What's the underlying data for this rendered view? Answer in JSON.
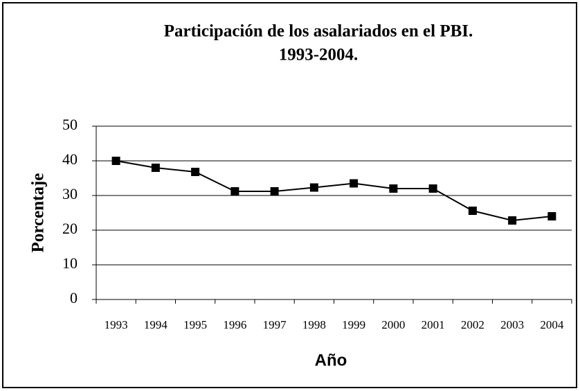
{
  "chart_data": {
    "type": "line",
    "title": [
      "Participación de los asalariados en el PBI.",
      "1993-2004."
    ],
    "x_label": "Año",
    "y_label": "Porcentaje",
    "categories": [
      "1993",
      "1994",
      "1995",
      "1996",
      "1997",
      "1998",
      "1999",
      "2000",
      "2001",
      "2002",
      "2003",
      "2004"
    ],
    "values": [
      40,
      38,
      36.8,
      31.2,
      31.2,
      32.3,
      33.5,
      32,
      32,
      25.6,
      22.8,
      24
    ],
    "color": "#000000",
    "ylim": [
      0,
      50
    ],
    "yticks": [
      0,
      10,
      20,
      30,
      40,
      50
    ],
    "grid": true
  }
}
